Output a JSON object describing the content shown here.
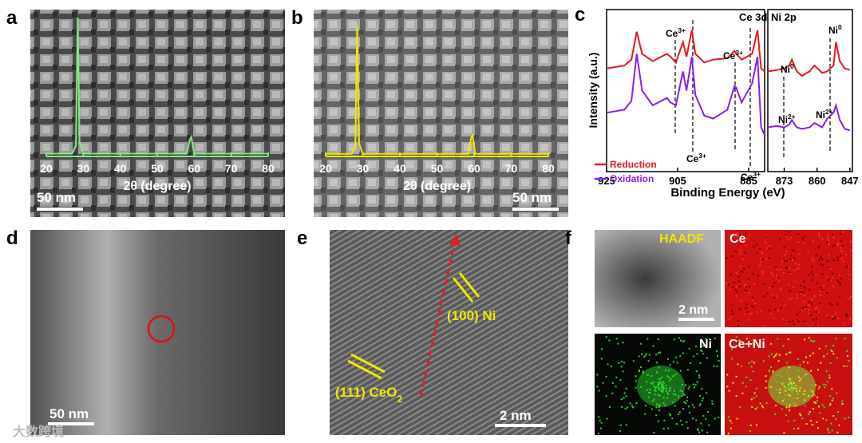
{
  "figure": {
    "panel_labels": [
      "a",
      "b",
      "c",
      "d",
      "e",
      "f"
    ],
    "image_texts": {
      "a_scale": "50 nm",
      "b_scale": "50 nm",
      "d_scale": "50 nm",
      "e_scale": "2 nm",
      "e_ni": "(100) Ni",
      "e_ceo2": {
        "text": "(111) CeO",
        "sub": "2"
      },
      "f_haadf": "HAADF",
      "f_ce": "Ce",
      "f_ni": "Ni",
      "f_ceni": "Ce+Ni",
      "f_scale": "2 nm"
    },
    "watermark": "大数跨境"
  },
  "chart_data": [
    {
      "type": "line",
      "xlabel": "2θ (degree)",
      "color": "#86e886",
      "x": [
        20,
        27,
        28,
        28.5,
        29,
        30,
        58,
        58.8,
        59.2,
        60,
        80
      ],
      "values": [
        2,
        2,
        8,
        100,
        10,
        2,
        2,
        12,
        14,
        2,
        2
      ],
      "xlim": [
        20,
        80
      ],
      "xticks": [
        20,
        30,
        40,
        50,
        60,
        70,
        80
      ],
      "ylim": [
        0,
        100
      ]
    },
    {
      "type": "line",
      "xlabel": "2θ (degree)",
      "color": "#f2e600",
      "x": [
        20,
        27,
        28,
        28.5,
        29,
        30,
        58.5,
        59.2,
        59.6,
        60.3,
        80
      ],
      "values": [
        2,
        2,
        8,
        100,
        10,
        2,
        2,
        14,
        16,
        2,
        2
      ],
      "xlim": [
        20,
        80
      ],
      "xticks": [
        20,
        30,
        40,
        50,
        60,
        70,
        80
      ],
      "ylim": [
        0,
        100
      ]
    },
    {
      "type": "line",
      "title": "Ce 3d",
      "ylabel": "Intensity (a.u.)",
      "xlabel": "Binding Energy (eV)",
      "x": [
        925,
        920,
        918,
        916.5,
        915,
        912,
        908,
        907,
        905.5,
        903.5,
        902.5,
        901,
        900,
        897.5,
        895,
        891,
        889,
        888.5,
        887,
        884,
        882.5,
        881.5,
        880.5
      ],
      "series": [
        {
          "name": "Reduction",
          "color": "#e8191a",
          "values": [
            70,
            72,
            76,
            95,
            80,
            75,
            80,
            78,
            74,
            88,
            78,
            96,
            80,
            74,
            76,
            77,
            82,
            80,
            76,
            80,
            96,
            70,
            68
          ]
        },
        {
          "name": "Oxidation",
          "color": "#8a1ee8",
          "values": [
            40,
            42,
            48,
            80,
            55,
            45,
            50,
            47,
            45,
            68,
            55,
            78,
            52,
            38,
            36,
            42,
            58,
            57,
            47,
            60,
            78,
            30,
            25
          ]
        }
      ],
      "annotations": [
        {
          "text": "Ce",
          "sup": "3+"
        },
        {
          "text": "Ce",
          "sup": "3+"
        },
        {
          "text": "Ce",
          "sup": "3+"
        },
        {
          "text": "Ce",
          "sup": "3+"
        }
      ],
      "xlim": [
        925,
        880.5
      ],
      "xticks": [
        925,
        905,
        885
      ],
      "ylim": [
        0,
        110
      ],
      "legend": "lower-left"
    },
    {
      "type": "line",
      "title": "Ni 2p",
      "x": [
        879.5,
        876,
        873,
        871,
        870,
        868,
        866,
        863,
        861,
        858,
        856,
        853.5,
        852.5,
        851,
        849,
        847
      ],
      "series": [
        {
          "name": "Reduction",
          "color": "#e8191a",
          "values": [
            68,
            69,
            70,
            72,
            76,
            68,
            65,
            68,
            72,
            67,
            68,
            72,
            88,
            75,
            70,
            69
          ]
        },
        {
          "name": "Oxidation",
          "color": "#8a1ee8",
          "values": [
            30,
            31,
            30,
            32,
            35,
            30,
            29,
            30,
            33,
            30,
            36,
            40,
            45,
            35,
            29,
            28
          ]
        }
      ],
      "annotations": [
        {
          "text": "Ni",
          "sup": "0"
        },
        {
          "text": "Ni",
          "sup": "0"
        },
        {
          "text": "Ni",
          "sup": "2+"
        },
        {
          "text": "Ni",
          "sup": "2+"
        }
      ],
      "xlim": [
        879.5,
        846
      ],
      "xticks": [
        873,
        860,
        847
      ],
      "ylim": [
        0,
        110
      ]
    }
  ]
}
